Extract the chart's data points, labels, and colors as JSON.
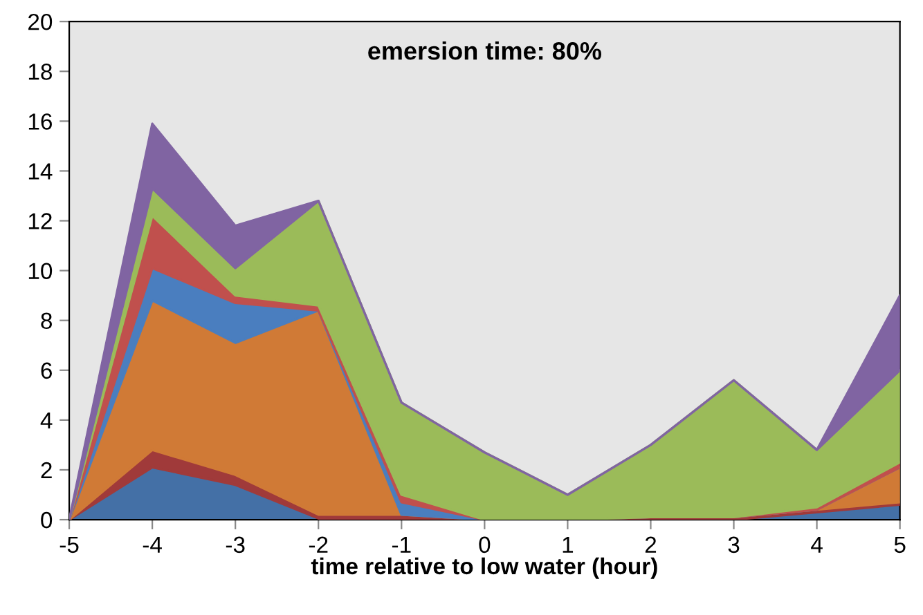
{
  "chart_data": {
    "type": "area",
    "stacked": true,
    "title": "emersion time: 80%",
    "xlabel": "time relative to low water (hour)",
    "x": [
      -5,
      -4,
      -3,
      -2,
      -1,
      0,
      1,
      2,
      3,
      4,
      5
    ],
    "xlim": [
      -5,
      5
    ],
    "xticks": [
      -5,
      -4,
      -3,
      -2,
      -1,
      0,
      1,
      2,
      3,
      4,
      5
    ],
    "ylim": [
      0,
      20
    ],
    "yticks": [
      0,
      2,
      4,
      6,
      8,
      10,
      12,
      14,
      16,
      18,
      20
    ],
    "grid": false,
    "legend": false,
    "series": [
      {
        "color": "#4470a6",
        "values": [
          0,
          2.1,
          1.4,
          0.05,
          0,
          0,
          0,
          0,
          0,
          0.3,
          0.6
        ]
      },
      {
        "color": "#a03a3a",
        "values": [
          0,
          0.7,
          0.4,
          0.15,
          0.2,
          0,
          0,
          0.1,
          0.1,
          0.1,
          0.1
        ]
      },
      {
        "color": "#d07a36",
        "values": [
          0,
          6.0,
          5.3,
          8.2,
          0,
          0,
          0,
          0,
          0,
          0,
          1.4
        ]
      },
      {
        "color": "#4a7ebf",
        "values": [
          0,
          1.3,
          1.6,
          0,
          0.5,
          0,
          0,
          0,
          0,
          0,
          0
        ]
      },
      {
        "color": "#c0504d",
        "values": [
          0,
          2.1,
          0.3,
          0.2,
          0.3,
          0,
          0,
          0,
          0,
          0.1,
          0.2
        ]
      },
      {
        "color": "#9bbb59",
        "values": [
          0,
          1.1,
          1.1,
          4.2,
          3.7,
          2.7,
          1.0,
          2.9,
          5.5,
          2.3,
          3.7
        ]
      },
      {
        "color": "#8064a2",
        "values": [
          0,
          2.6,
          1.7,
          0,
          0,
          0,
          0,
          0,
          0,
          0,
          3.0
        ]
      }
    ]
  }
}
